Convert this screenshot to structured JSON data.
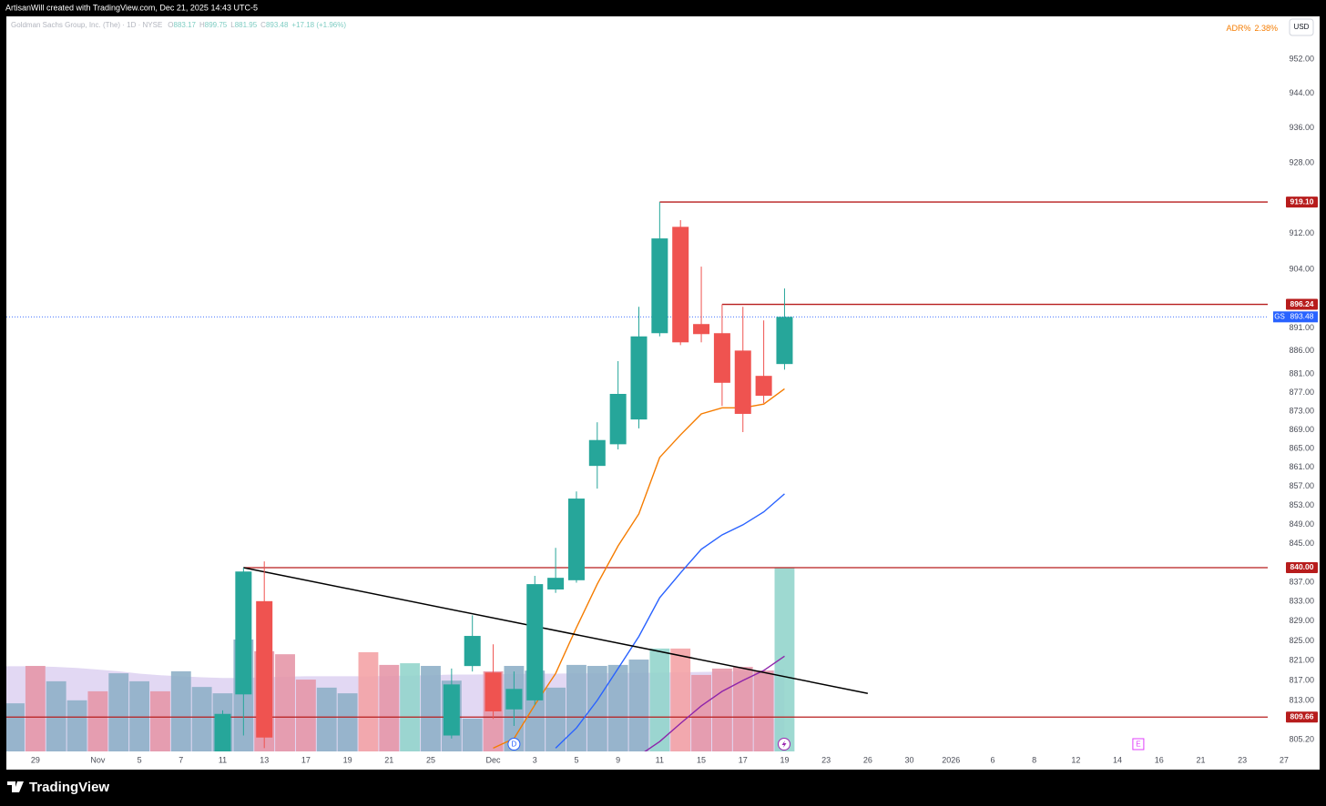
{
  "chart_data": {
    "type": "candlestick",
    "attribution": "ArtisanWill created with TradingView.com, Dec 21, 2025 14:43 UTC-5",
    "brand": "TradingView",
    "title": "Goldman Sachs Group, Inc. (The) · 1D · NYSE",
    "symbol": "GS",
    "ohlc_labels": [
      "O",
      "H",
      "L",
      "C"
    ],
    "change": "+17.18 (+1.96%)",
    "currency": "USD",
    "adr": {
      "name": "ADR%",
      "value": 2.38,
      "value_label": "2.38%",
      "color": "#f57c00"
    },
    "log_scale": true,
    "grid": false,
    "ylim": [
      802.85,
      962.07
    ],
    "yticks": [
      {
        "value": 952,
        "label": "952.00"
      },
      {
        "value": 944,
        "label": "944.00"
      },
      {
        "value": 936,
        "label": "936.00"
      },
      {
        "value": 928,
        "label": "928.00"
      },
      {
        "value": 912,
        "label": "912.00"
      },
      {
        "value": 904,
        "label": "904.00"
      },
      {
        "value": 891,
        "label": "891.00"
      },
      {
        "value": 886,
        "label": "886.00"
      },
      {
        "value": 881,
        "label": "881.00"
      },
      {
        "value": 877,
        "label": "877.00"
      },
      {
        "value": 873,
        "label": "873.00"
      },
      {
        "value": 869,
        "label": "869.00"
      },
      {
        "value": 865,
        "label": "865.00"
      },
      {
        "value": 861,
        "label": "861.00"
      },
      {
        "value": 857,
        "label": "857.00"
      },
      {
        "value": 853,
        "label": "853.00"
      },
      {
        "value": 849,
        "label": "849.00"
      },
      {
        "value": 845,
        "label": "845.00"
      },
      {
        "value": 837,
        "label": "837.00"
      },
      {
        "value": 833,
        "label": "833.00"
      },
      {
        "value": 829,
        "label": "829.00"
      },
      {
        "value": 825,
        "label": "825.00"
      },
      {
        "value": 821,
        "label": "821.00"
      },
      {
        "value": 817,
        "label": "817.00"
      },
      {
        "value": 813,
        "label": "813.00"
      },
      {
        "value": 805.2,
        "label": "805.20"
      }
    ],
    "categories": [
      null,
      "29",
      null,
      null,
      "Nov",
      null,
      "5",
      null,
      "7",
      null,
      "11",
      null,
      "13",
      null,
      "17",
      null,
      "19",
      null,
      "21",
      null,
      "25",
      null,
      null,
      "Dec",
      null,
      "3",
      null,
      "5",
      null,
      "9",
      null,
      "11",
      null,
      "15",
      null,
      "17",
      null,
      "19",
      null,
      "23",
      null,
      "26",
      null,
      "30",
      null,
      "2026",
      null,
      "6",
      null,
      "8",
      null,
      "12",
      null,
      "14",
      null,
      "16",
      null,
      "21",
      null,
      "23",
      null,
      "27"
    ],
    "up_color": "#26a69a",
    "down_color": "#ef5350",
    "open": [
      null,
      null,
      null,
      null,
      null,
      null,
      null,
      null,
      null,
      null,
      800,
      814.2,
      833.1,
      null,
      null,
      null,
      null,
      null,
      null,
      null,
      null,
      806.0,
      819.9,
      818.6,
      811.2,
      813.0,
      835.5,
      837.4,
      861.3,
      865.9,
      871.2,
      889.9,
      913.5,
      891.9,
      889.9,
      886.1,
      880.6,
      883.17,
      null,
      null,
      null,
      null,
      null,
      null,
      null,
      null,
      null,
      null,
      null,
      null,
      null,
      null,
      null,
      null,
      null,
      null,
      null,
      null,
      null,
      null,
      null,
      null
    ],
    "high": [
      null,
      null,
      null,
      null,
      null,
      null,
      null,
      null,
      null,
      null,
      811,
      840.0,
      841.3,
      null,
      null,
      null,
      null,
      null,
      null,
      null,
      null,
      819.4,
      830.2,
      824.3,
      818.8,
      838.3,
      844.1,
      855.9,
      870.6,
      883.8,
      895.7,
      919.1,
      915.0,
      904.6,
      896.24,
      895.7,
      892.7,
      899.75,
      null,
      null,
      null,
      null,
      null,
      null,
      null,
      null,
      null,
      null,
      null,
      null,
      null,
      null,
      null,
      null,
      null,
      null,
      null,
      null,
      null,
      null,
      null,
      null
    ],
    "low": [
      null,
      null,
      null,
      null,
      null,
      null,
      null,
      null,
      null,
      null,
      797,
      806,
      803.5,
      null,
      null,
      null,
      null,
      null,
      null,
      null,
      null,
      805.4,
      818.8,
      809.3,
      807.9,
      812.1,
      834.8,
      836.9,
      856.5,
      864.8,
      869.3,
      889.2,
      887.3,
      887.9,
      874.1,
      868.5,
      874.7,
      881.95,
      null,
      null,
      null,
      null,
      null,
      null,
      null,
      null,
      null,
      null,
      null,
      null,
      null,
      null,
      null,
      null,
      null,
      null,
      null,
      null,
      null,
      null,
      null,
      null
    ],
    "close": [
      null,
      null,
      null,
      null,
      null,
      null,
      null,
      null,
      null,
      null,
      810.3,
      839.2,
      805.6,
      null,
      null,
      null,
      null,
      null,
      null,
      null,
      null,
      816.2,
      826.0,
      810.8,
      815.3,
      836.6,
      837.9,
      854.4,
      866.8,
      876.7,
      889.2,
      910.9,
      887.9,
      889.7,
      879.1,
      872.4,
      876.3,
      893.48,
      null,
      null,
      null,
      null,
      null,
      null,
      null,
      null,
      null,
      null,
      null,
      null,
      null,
      null,
      null,
      null,
      null,
      null,
      null,
      null,
      null,
      null,
      null,
      null
    ],
    "volume": {
      "vlim": [
        0,
        7
      ],
      "values": [
        1.44,
        2.56,
        2.1,
        1.53,
        1.8,
        2.34,
        2.1,
        1.8,
        2.4,
        1.93,
        1.74,
        3.35,
        3.0,
        2.91,
        2.15,
        1.91,
        1.74,
        2.97,
        2.59,
        2.64,
        2.56,
        2.12,
        0.98,
        2.4,
        2.56,
        2.42,
        1.91,
        2.59,
        2.56,
        2.59,
        2.75,
        3.08,
        3.08,
        2.29,
        2.48,
        2.53,
        2.42,
        5.5,
        null,
        null,
        null,
        null,
        null,
        null,
        null,
        null,
        null,
        null,
        null,
        null,
        null,
        null,
        null,
        null,
        null,
        null,
        null,
        null,
        null,
        null,
        null,
        null
      ],
      "colors": [
        "#8fb0c8",
        "#e597a8",
        "#8fb0c8",
        "#8fb0c8",
        "#e597a8",
        "#8fb0c8",
        "#8fb0c8",
        "#e597a8",
        "#8fb0c8",
        "#8fb0c8",
        "#8fb0c8",
        "#8fb0c8",
        "#e597a8",
        "#e597a8",
        "#e597a8",
        "#8fb0c8",
        "#8fb0c8",
        "#f4a3a6",
        "#e597a8",
        "#93d5cc",
        "#8fb0c8",
        "#8fb0c8",
        "#8fb0c8",
        "#e597a8",
        "#8fb0c8",
        "#8fb0c8",
        "#8fb0c8",
        "#8fb0c8",
        "#8fb0c8",
        "#8fb0c8",
        "#8fb0c8",
        "#93d5cc",
        "#f4a3a6",
        "#e597a8",
        "#e597a8",
        "#e597a8",
        "#e597a8",
        "#93d5cc",
        null,
        null,
        null,
        null,
        null,
        null,
        null,
        null,
        null,
        null,
        null,
        null,
        null,
        null,
        null,
        null,
        null,
        null,
        null,
        null,
        null,
        null,
        null,
        null
      ],
      "ma_color": "#d6c8ee",
      "ma": [
        2.55,
        2.55,
        2.53,
        2.5,
        2.45,
        2.4,
        2.33,
        2.28,
        2.25,
        2.22,
        2.2,
        2.2,
        2.22,
        2.24,
        2.25,
        2.25,
        2.25,
        2.25,
        2.26,
        2.27,
        2.28,
        2.3,
        2.3,
        2.31,
        2.32,
        2.33,
        2.33,
        2.34,
        2.34,
        2.35,
        2.35,
        2.36,
        2.37,
        2.38,
        2.39,
        2.4,
        2.41,
        2.45,
        null,
        null,
        null,
        null,
        null,
        null,
        null,
        null,
        null,
        null,
        null,
        null,
        null,
        null,
        null,
        null,
        null,
        null,
        null,
        null,
        null,
        null,
        null,
        null
      ]
    },
    "lines": [
      {
        "color": "#f57c00",
        "values": [
          null,
          null,
          null,
          null,
          null,
          null,
          null,
          null,
          null,
          null,
          null,
          null,
          null,
          null,
          null,
          null,
          null,
          null,
          null,
          null,
          null,
          null,
          null,
          803.5,
          805.4,
          812.1,
          818.4,
          827.7,
          836.6,
          844.5,
          851.2,
          863.1,
          867.9,
          872.4,
          873.7,
          873.7,
          874.5,
          877.8,
          null,
          null,
          null,
          null,
          null,
          null,
          null,
          null,
          null,
          null,
          null,
          null,
          null,
          null,
          null,
          null,
          null,
          null,
          null,
          null,
          null,
          null,
          null,
          null
        ]
      },
      {
        "color": "#2962ff",
        "values": [
          null,
          null,
          null,
          null,
          null,
          null,
          null,
          null,
          null,
          null,
          null,
          null,
          null,
          null,
          null,
          null,
          null,
          null,
          null,
          null,
          null,
          null,
          null,
          null,
          null,
          null,
          803.5,
          807.5,
          813.0,
          819.4,
          825.9,
          833.8,
          838.9,
          843.8,
          846.8,
          848.9,
          851.6,
          855.4,
          null,
          null,
          null,
          null,
          null,
          null,
          null,
          null,
          null,
          null,
          null,
          null,
          null,
          null,
          null,
          null,
          null,
          null,
          null,
          null,
          null,
          null,
          null,
          null
        ]
      },
      {
        "color": "#8e24aa",
        "values": [
          null,
          null,
          null,
          null,
          null,
          null,
          null,
          null,
          null,
          null,
          null,
          null,
          null,
          null,
          null,
          null,
          null,
          null,
          null,
          null,
          null,
          null,
          null,
          null,
          null,
          null,
          null,
          null,
          null,
          null,
          802.0,
          804.8,
          808.4,
          811.9,
          814.8,
          817.0,
          819.0,
          821.9,
          null,
          null,
          null,
          null,
          null,
          null,
          null,
          null,
          null,
          null,
          null,
          null,
          null,
          null,
          null,
          null,
          null,
          null,
          null,
          null,
          null,
          null,
          null,
          null
        ]
      }
    ],
    "levels_color": "#b71c1c",
    "levels": [
      {
        "value": 919.1,
        "label": "919.10",
        "from": 31
      },
      {
        "value": 896.24,
        "from": 34
      },
      {
        "value": 840,
        "label": "840.00",
        "from": 11
      },
      {
        "value": 809.66
      }
    ],
    "last_price_color": "#2962ff",
    "trendline": {
      "from": {
        "at": 11,
        "value": 840
      },
      "to": {
        "at": 41,
        "value": 814.4
      },
      "color": "#000000"
    },
    "markers": [
      {
        "label": "D",
        "at": 24,
        "color": "#2962ff"
      },
      {
        "label": "E",
        "at": 54,
        "color": "#e040fb"
      }
    ]
  }
}
